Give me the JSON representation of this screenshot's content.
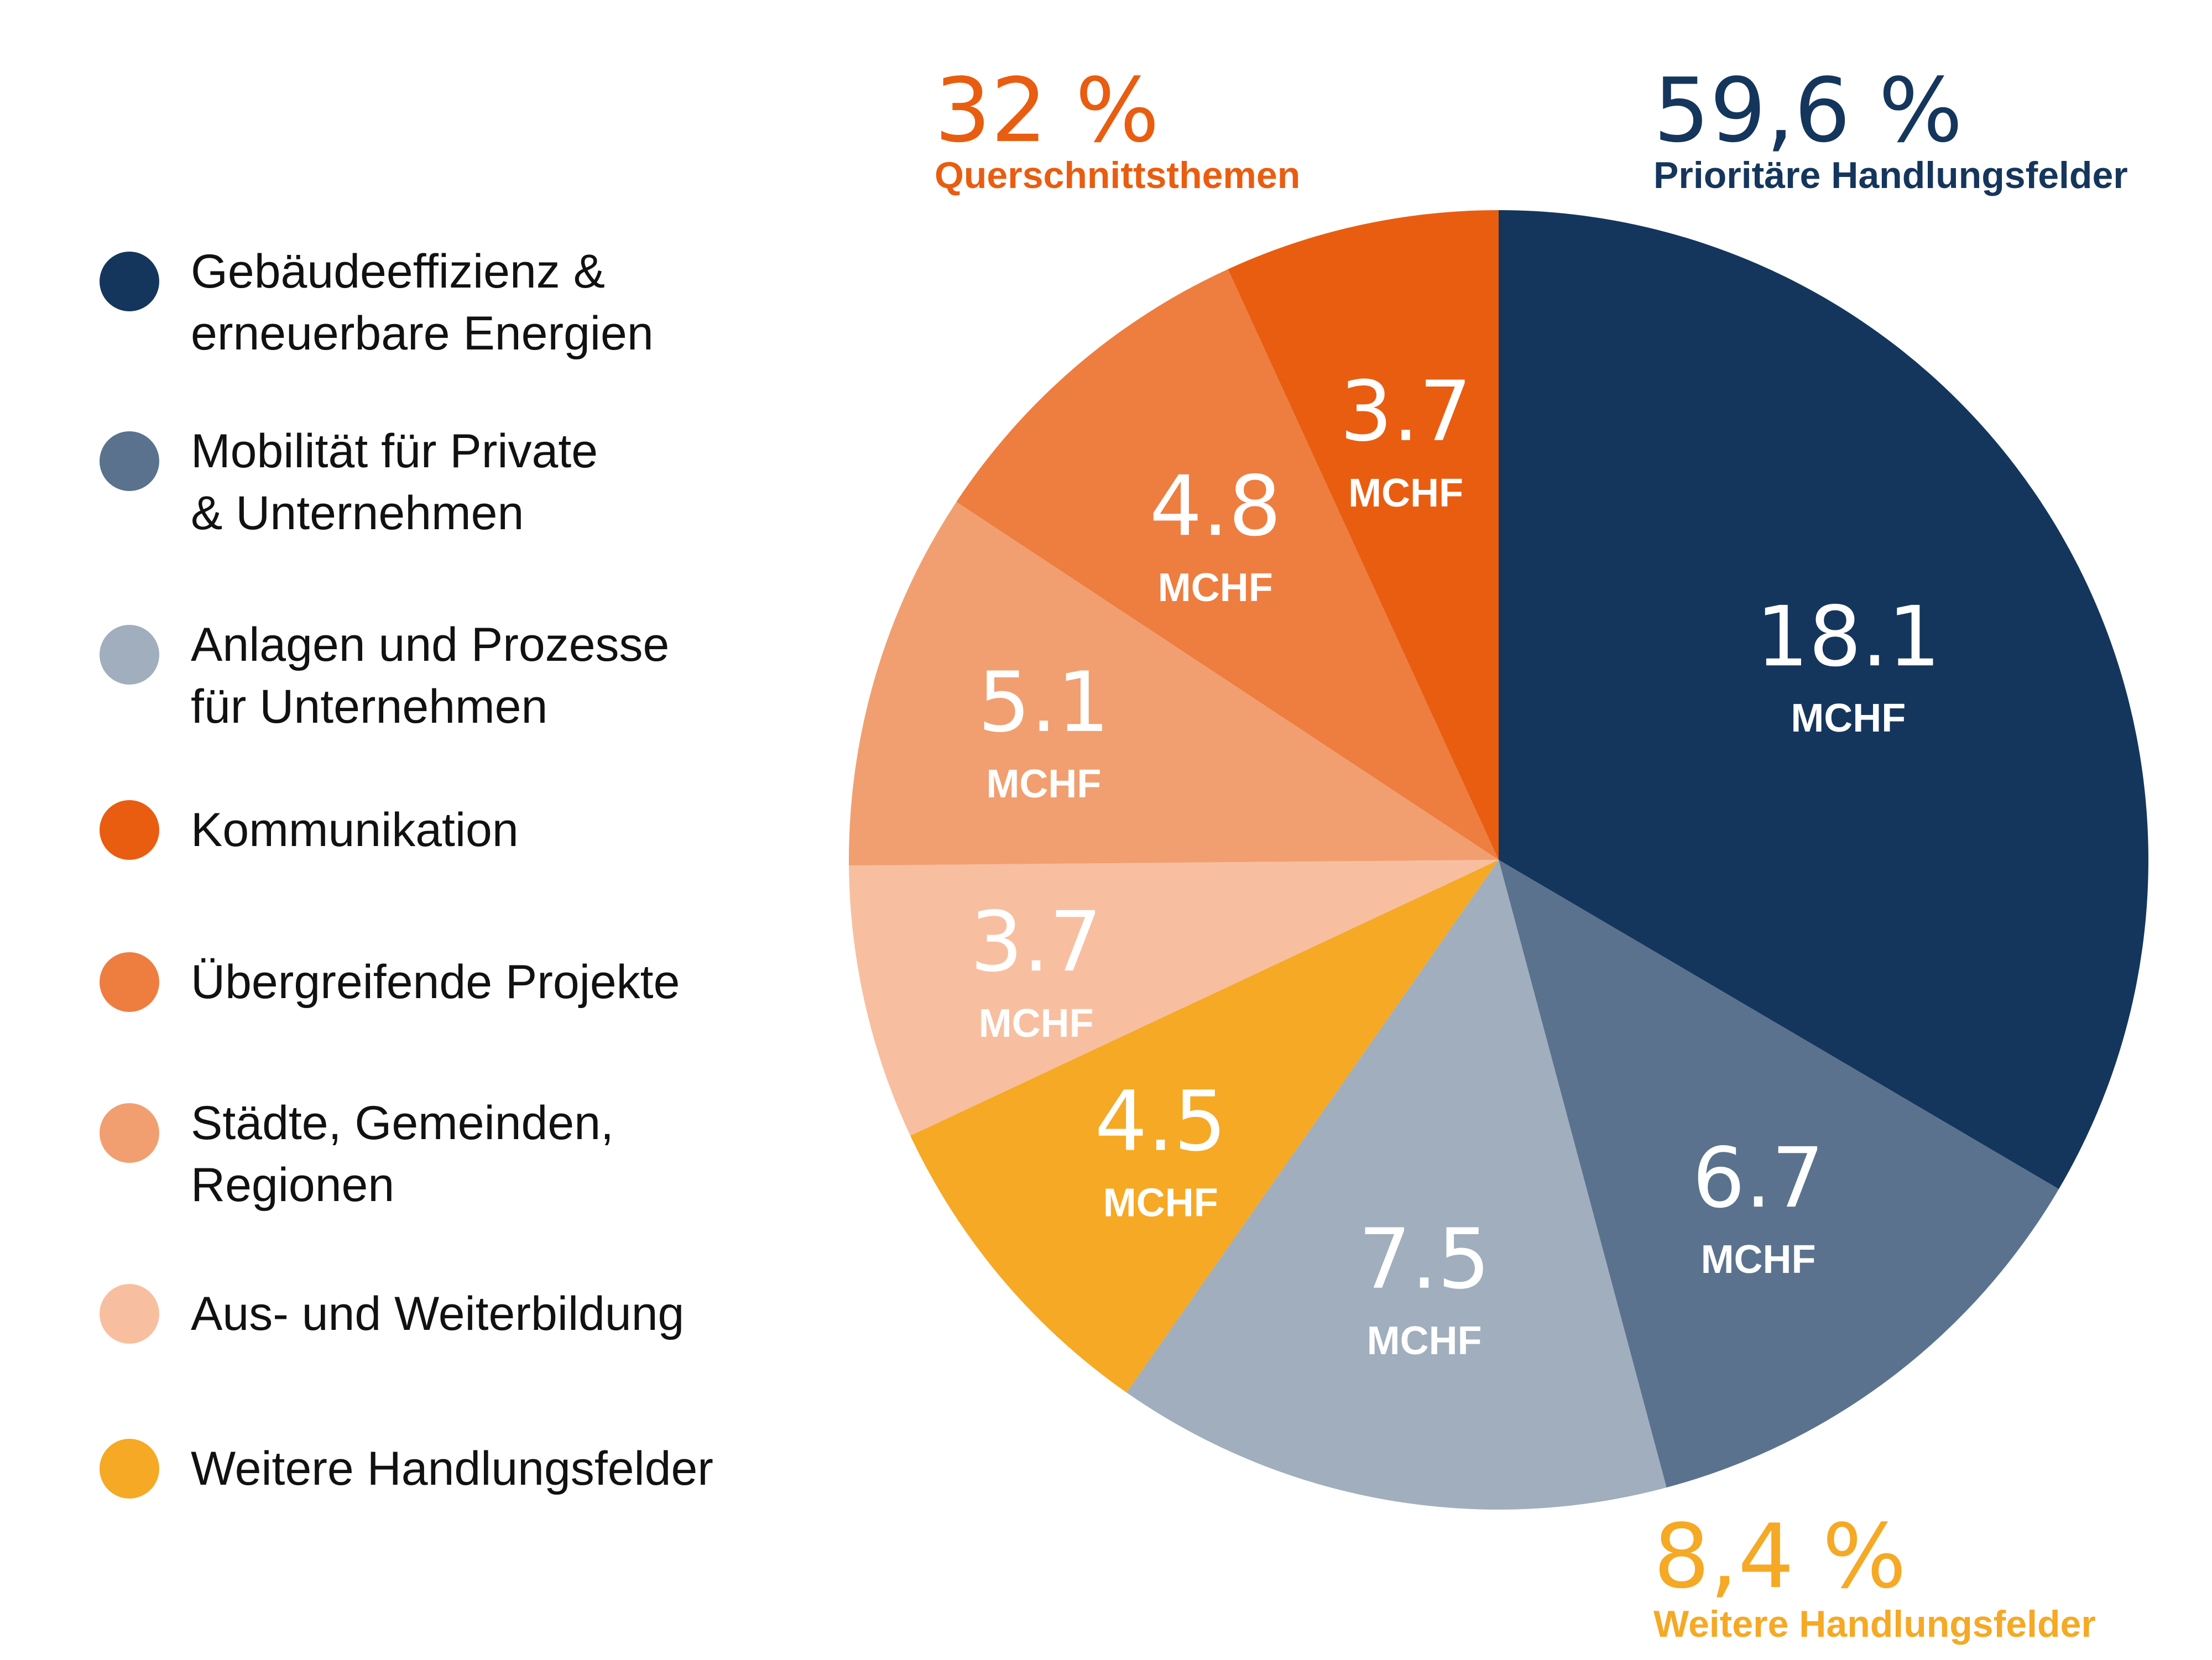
{
  "chart_data": {
    "type": "pie",
    "unit": "MCHF",
    "slices": [
      {
        "label": "Gebäudeeffizienz &\nerneuerbare Energien",
        "value": 18.1,
        "display": "18.1",
        "color": "#15365c"
      },
      {
        "label": "Mobilität für Private\n& Unternehmen",
        "value": 6.7,
        "display": "6.7",
        "color": "#5a728e"
      },
      {
        "label": "Anlagen und Prozesse\nfür Unternehmen",
        "value": 7.5,
        "display": "7.5",
        "color": "#a0aebe"
      },
      {
        "label": "Weitere Handlungsfelder",
        "value": 4.5,
        "display": "4.5",
        "color": "#f5a924"
      },
      {
        "label": "Aus- und Weiterbildung",
        "value": 3.7,
        "display": "3.7",
        "color": "#f7bfa0"
      },
      {
        "label": "Städte, Gemeinden,\nRegionen",
        "value": 5.1,
        "display": "5.1",
        "color": "#f19f70"
      },
      {
        "label": "Übergreifende Projekte",
        "value": 4.8,
        "display": "4.8",
        "color": "#ee7d40"
      },
      {
        "label": "Kommunikation",
        "value": 3.7,
        "display": "3.7",
        "color": "#e95d10"
      }
    ],
    "legend": [
      {
        "label": "Gebäudeeffizienz &\nerneuerbare Energien",
        "color": "#15365c"
      },
      {
        "label": "Mobilität für Private\n& Unternehmen",
        "color": "#5a728e"
      },
      {
        "label": "Anlagen und Prozesse\nfür Unternehmen",
        "color": "#a0aebe"
      },
      {
        "label": "Kommunikation",
        "color": "#e95d10"
      },
      {
        "label": "Übergreifende Projekte",
        "color": "#ee7d40"
      },
      {
        "label": "Städte, Gemeinden,\nRegionen",
        "color": "#f19f70"
      },
      {
        "label": "Aus- und Weiterbildung",
        "color": "#f7bfa0"
      },
      {
        "label": "Weitere Handlungsfelder",
        "color": "#f5a924"
      }
    ],
    "legend_placement": "left",
    "groups": [
      {
        "percent": "32 %",
        "name": "Querschnittsthemen",
        "color": "#e95d10"
      },
      {
        "percent": "59,6 %",
        "name": "Prioritäre Handlungsfelder",
        "color": "#15365c"
      },
      {
        "percent": "8,4 %",
        "name": "Weitere Handlungsfelder",
        "color": "#f5a924"
      }
    ]
  }
}
